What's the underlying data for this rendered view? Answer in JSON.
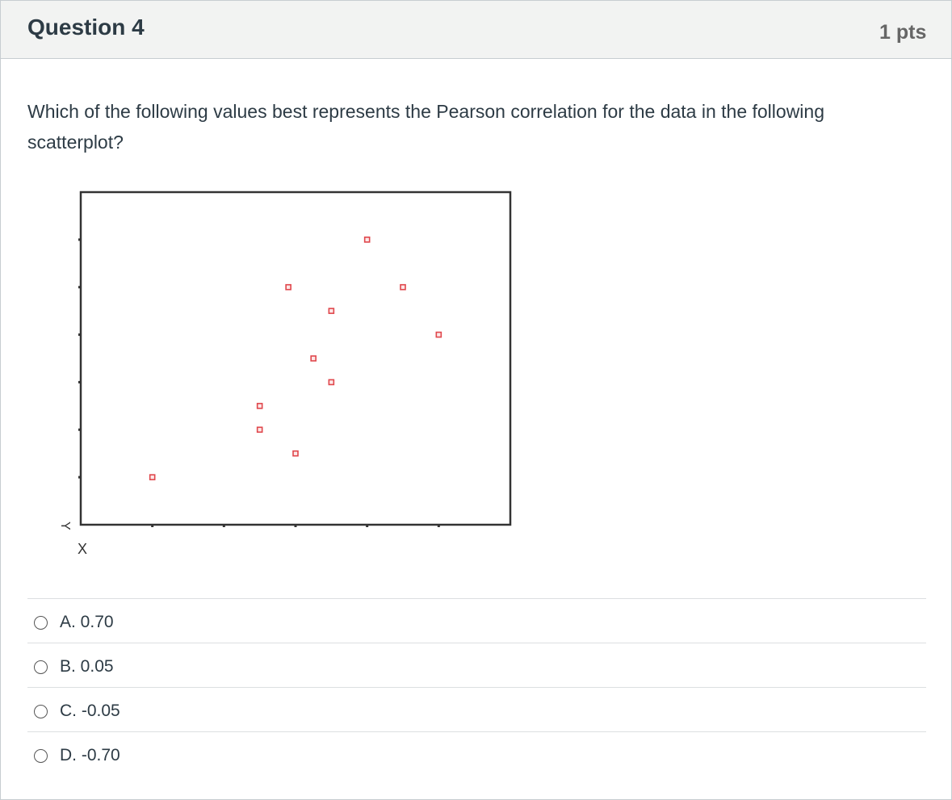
{
  "question": {
    "title": "Question 4",
    "points": "1 pts",
    "text": "Which of the following values best represents the Pearson correlation for the data in the following scatterplot?"
  },
  "chart_data": {
    "type": "scatter",
    "xlabel": "X",
    "ylabel": "Y",
    "xlim": [
      0,
      6
    ],
    "ylim": [
      0,
      7
    ],
    "grid": false,
    "legend": "none",
    "marker_color": "#e0474c",
    "points": [
      {
        "x": 1.0,
        "y": 1.0
      },
      {
        "x": 2.5,
        "y": 2.0
      },
      {
        "x": 2.5,
        "y": 2.5
      },
      {
        "x": 3.0,
        "y": 1.5
      },
      {
        "x": 3.25,
        "y": 3.5
      },
      {
        "x": 3.5,
        "y": 3.0
      },
      {
        "x": 3.5,
        "y": 4.5
      },
      {
        "x": 2.9,
        "y": 5.0
      },
      {
        "x": 4.0,
        "y": 6.0
      },
      {
        "x": 4.5,
        "y": 5.0
      },
      {
        "x": 5.0,
        "y": 4.0
      }
    ]
  },
  "answers": [
    {
      "label": "A. 0.70"
    },
    {
      "label": "B. 0.05"
    },
    {
      "label": "C. -0.05"
    },
    {
      "label": "D. -0.70"
    }
  ]
}
